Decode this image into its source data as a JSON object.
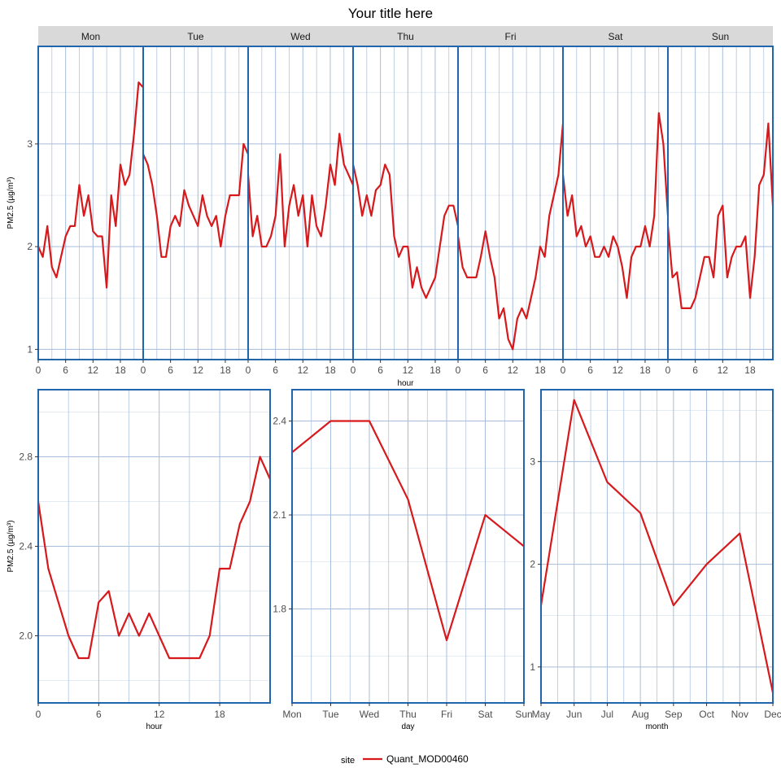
{
  "title": "Your title here",
  "colors": {
    "series": "#d7191c",
    "frame": "#2166ac",
    "grid": "#a6bddb",
    "strip": "#d9d9d9"
  },
  "legend": {
    "title": "site",
    "label": "Quant_MOD00460"
  },
  "chart_data": [
    {
      "type": "line",
      "panel": "hour by weekday",
      "facets": [
        "Mon",
        "Tue",
        "Wed",
        "Thu",
        "Fri",
        "Sat",
        "Sun"
      ],
      "x_ticks": [
        "0",
        "6",
        "12",
        "18"
      ],
      "xlabel": "hour",
      "ylabel": "PM2.5 (µg/m³)",
      "y_ticks": [
        "1",
        "2",
        "3"
      ],
      "xlim": [
        0,
        23
      ],
      "ylim": [
        0.9,
        3.95
      ],
      "series": [
        {
          "name": "Quant_MOD00460",
          "facet_values": [
            [
              2.0,
              1.9,
              2.2,
              1.8,
              1.7,
              1.9,
              2.1,
              2.2,
              2.2,
              2.6,
              2.3,
              2.5,
              2.15,
              2.1,
              2.1,
              1.6,
              2.5,
              2.2,
              2.8,
              2.6,
              2.7,
              3.1,
              3.6,
              3.55
            ],
            [
              2.9,
              2.8,
              2.6,
              2.3,
              1.9,
              1.9,
              2.2,
              2.3,
              2.2,
              2.55,
              2.4,
              2.3,
              2.2,
              2.5,
              2.3,
              2.2,
              2.3,
              2.0,
              2.3,
              2.5,
              2.5,
              2.5,
              3.0,
              2.9
            ],
            [
              2.7,
              2.1,
              2.3,
              2.0,
              2.0,
              2.1,
              2.3,
              2.9,
              2.0,
              2.4,
              2.6,
              2.3,
              2.5,
              2.0,
              2.5,
              2.2,
              2.1,
              2.4,
              2.8,
              2.6,
              3.1,
              2.8,
              2.7,
              2.6
            ],
            [
              2.8,
              2.6,
              2.3,
              2.5,
              2.3,
              2.55,
              2.6,
              2.8,
              2.7,
              2.1,
              1.9,
              2.0,
              2.0,
              1.6,
              1.8,
              1.6,
              1.5,
              1.6,
              1.7,
              2.0,
              2.3,
              2.4,
              2.4,
              2.2
            ],
            [
              2.1,
              1.8,
              1.7,
              1.7,
              1.7,
              1.9,
              2.15,
              1.9,
              1.7,
              1.3,
              1.4,
              1.1,
              1.0,
              1.3,
              1.4,
              1.3,
              1.5,
              1.7,
              2.0,
              1.9,
              2.3,
              2.5,
              2.7,
              3.2
            ],
            [
              2.7,
              2.3,
              2.5,
              2.1,
              2.2,
              2.0,
              2.1,
              1.9,
              1.9,
              2.0,
              1.9,
              2.1,
              2.0,
              1.8,
              1.5,
              1.9,
              2.0,
              2.0,
              2.2,
              2.0,
              2.3,
              3.3,
              3.0,
              2.3
            ],
            [
              2.2,
              1.7,
              1.75,
              1.4,
              1.4,
              1.4,
              1.5,
              1.7,
              1.9,
              1.9,
              1.7,
              2.3,
              2.4,
              1.7,
              1.9,
              2.0,
              2.0,
              2.1,
              1.5,
              1.9,
              2.6,
              2.7,
              3.2,
              2.4
            ]
          ]
        }
      ]
    },
    {
      "type": "line",
      "panel": "hour",
      "xlabel": "hour",
      "ylabel": "PM2.5 (µg/m³)",
      "x": [
        0,
        1,
        2,
        3,
        4,
        5,
        6,
        7,
        8,
        9,
        10,
        11,
        12,
        13,
        14,
        15,
        16,
        17,
        18,
        19,
        20,
        21,
        22,
        23
      ],
      "x_ticks": [
        "0",
        "6",
        "12",
        "18"
      ],
      "y_ticks": [
        "2.0",
        "2.4",
        "2.8"
      ],
      "xlim": [
        0,
        23
      ],
      "ylim": [
        1.7,
        3.1
      ],
      "series": [
        {
          "name": "Quant_MOD00460",
          "values": [
            2.6,
            2.3,
            2.15,
            2.0,
            1.9,
            1.9,
            2.15,
            2.2,
            2.0,
            2.1,
            2.0,
            2.1,
            2.0,
            1.9,
            1.9,
            1.9,
            1.9,
            2.0,
            2.3,
            2.3,
            2.5,
            2.6,
            2.8,
            2.7
          ]
        }
      ]
    },
    {
      "type": "line",
      "panel": "day",
      "xlabel": "day",
      "categories": [
        "Mon",
        "Tue",
        "Wed",
        "Thu",
        "Fri",
        "Sat",
        "Sun"
      ],
      "y_ticks": [
        "1.8",
        "2.1",
        "2.4"
      ],
      "ylim": [
        1.5,
        2.5
      ],
      "series": [
        {
          "name": "Quant_MOD00460",
          "values": [
            2.3,
            2.4,
            2.4,
            2.15,
            1.7,
            2.1,
            2.0
          ]
        }
      ]
    },
    {
      "type": "line",
      "panel": "month",
      "xlabel": "month",
      "categories": [
        "May",
        "Jun",
        "Jul",
        "Aug",
        "Sep",
        "Oct",
        "Nov",
        "Dec"
      ],
      "y_ticks": [
        "1",
        "2",
        "3"
      ],
      "ylim": [
        0.65,
        3.7
      ],
      "series": [
        {
          "name": "Quant_MOD00460",
          "values": [
            1.6,
            3.6,
            2.8,
            2.5,
            1.6,
            2.0,
            2.3,
            0.75
          ]
        }
      ]
    }
  ]
}
